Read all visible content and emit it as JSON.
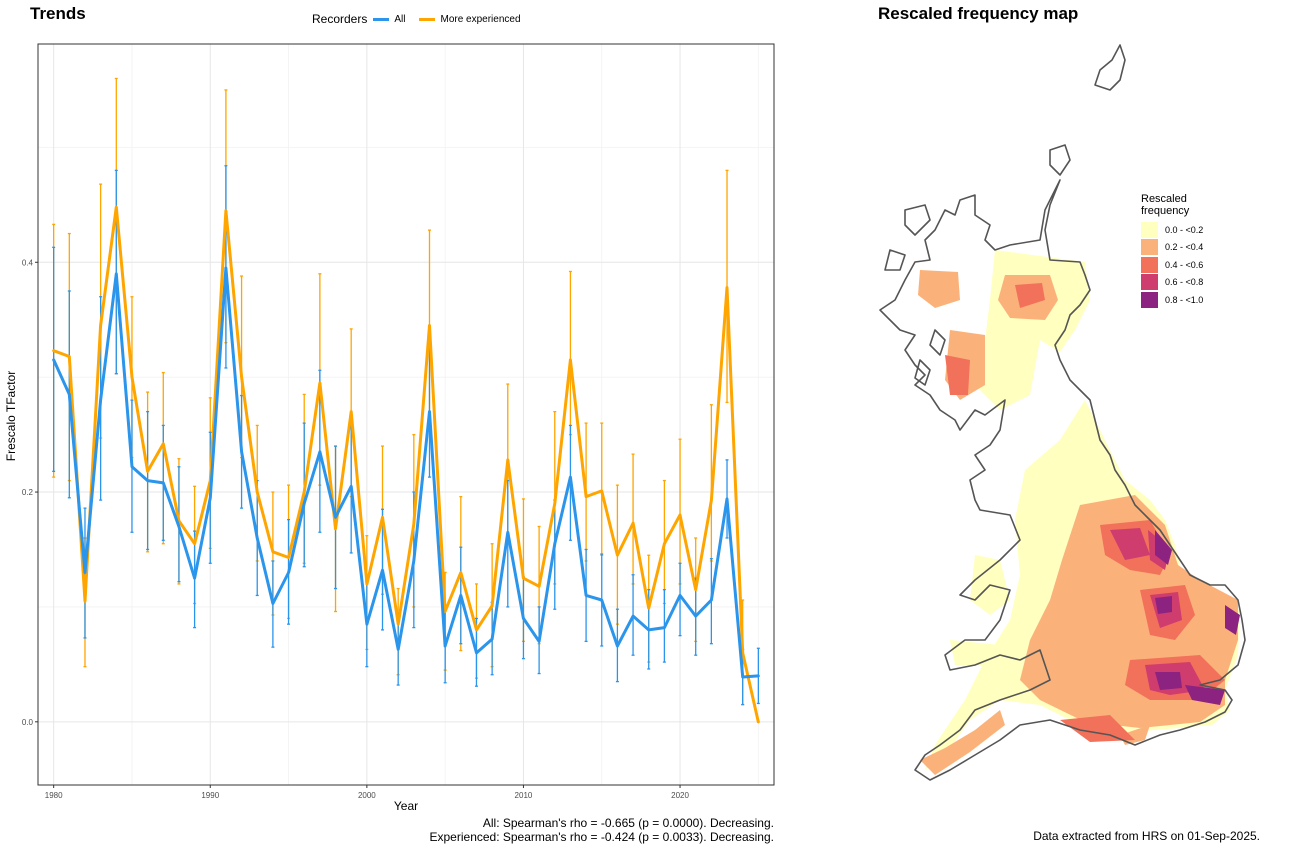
{
  "trends_title": "Trends",
  "map_title": "Rescaled frequency map",
  "legend": {
    "title": "Recorders",
    "items": [
      {
        "label": "All",
        "color": "#2B95EC"
      },
      {
        "label": "More experienced",
        "color": "#FFA500"
      }
    ]
  },
  "stats": {
    "all": "All: Spearman's rho = -0.665 (p = 0.0000). Decreasing.",
    "experienced": "Experienced: Spearman's rho = -0.424 (p = 0.0033). Decreasing."
  },
  "source_note": "Data extracted from HRS on 01-Sep-2025.",
  "map_legend": {
    "title_line1": "Rescaled",
    "title_line2": "frequency",
    "items": [
      {
        "label": "0.0 - <0.2",
        "color": "#FFFFC0"
      },
      {
        "label": "0.2 - <0.4",
        "color": "#FBB27A"
      },
      {
        "label": "0.4 - <0.6",
        "color": "#F2715A"
      },
      {
        "label": "0.6 - <0.8",
        "color": "#CF3C6E"
      },
      {
        "label": "0.8 - <1.0",
        "color": "#8C2380"
      }
    ]
  },
  "chart_data": {
    "type": "line",
    "xlabel": "Year",
    "ylabel": "Frescalo TFactor",
    "xlim": [
      1979,
      2026
    ],
    "ylim": [
      -0.055,
      0.59
    ],
    "x_ticks": [
      1980,
      1990,
      2000,
      2010,
      2020
    ],
    "y_ticks": [
      0.0,
      0.2,
      0.4
    ],
    "y_tick_labels": [
      "0.0",
      "0.2",
      "0.4"
    ],
    "grid": true,
    "x": [
      1980,
      1981,
      1982,
      1983,
      1984,
      1985,
      1986,
      1987,
      1988,
      1989,
      1990,
      1991,
      1992,
      1993,
      1994,
      1995,
      1996,
      1997,
      1998,
      1999,
      2000,
      2001,
      2002,
      2003,
      2004,
      2005,
      2006,
      2007,
      2008,
      2009,
      2010,
      2011,
      2012,
      2013,
      2014,
      2015,
      2016,
      2017,
      2018,
      2019,
      2020,
      2021,
      2022,
      2023,
      2024,
      2025
    ],
    "series": [
      {
        "name": "All",
        "color": "#2B95EC",
        "values": [
          0.315,
          0.285,
          0.13,
          0.28,
          0.39,
          0.222,
          0.21,
          0.208,
          0.17,
          0.125,
          0.195,
          0.395,
          0.235,
          0.16,
          0.103,
          0.13,
          0.19,
          0.235,
          0.178,
          0.205,
          0.085,
          0.132,
          0.063,
          0.14,
          0.27,
          0.066,
          0.11,
          0.06,
          0.072,
          0.165,
          0.09,
          0.07,
          0.155,
          0.213,
          0.11,
          0.106,
          0.066,
          0.092,
          0.08,
          0.082,
          0.11,
          0.092,
          0.106,
          0.194,
          0.039,
          0.04
        ],
        "lower": [
          0.218,
          0.195,
          0.073,
          0.193,
          0.303,
          0.165,
          0.15,
          0.158,
          0.122,
          0.082,
          0.138,
          0.308,
          0.186,
          0.11,
          0.065,
          0.085,
          0.135,
          0.165,
          0.116,
          0.147,
          0.048,
          0.08,
          0.032,
          0.082,
          0.213,
          0.034,
          0.068,
          0.031,
          0.041,
          0.1,
          0.055,
          0.042,
          0.098,
          0.158,
          0.07,
          0.066,
          0.035,
          0.058,
          0.046,
          0.052,
          0.075,
          0.058,
          0.068,
          0.16,
          0.015,
          0.016
        ],
        "upper": [
          0.413,
          0.375,
          0.186,
          0.37,
          0.48,
          0.28,
          0.27,
          0.258,
          0.222,
          0.166,
          0.252,
          0.484,
          0.284,
          0.21,
          0.14,
          0.176,
          0.26,
          0.306,
          0.24,
          0.264,
          0.122,
          0.185,
          0.094,
          0.2,
          0.335,
          0.1,
          0.152,
          0.09,
          0.104,
          0.21,
          0.126,
          0.1,
          0.193,
          0.258,
          0.15,
          0.146,
          0.098,
          0.128,
          0.115,
          0.115,
          0.138,
          0.125,
          0.142,
          0.228,
          0.063,
          0.064
        ]
      },
      {
        "name": "More experienced",
        "color": "#FFA500",
        "values": [
          0.323,
          0.318,
          0.105,
          0.345,
          0.448,
          0.3,
          0.218,
          0.242,
          0.175,
          0.155,
          0.21,
          0.445,
          0.3,
          0.2,
          0.148,
          0.143,
          0.2,
          0.295,
          0.168,
          0.27,
          0.12,
          0.178,
          0.085,
          0.172,
          0.345,
          0.096,
          0.13,
          0.08,
          0.101,
          0.228,
          0.125,
          0.118,
          0.19,
          0.315,
          0.196,
          0.201,
          0.145,
          0.173,
          0.099,
          0.155,
          0.18,
          0.115,
          0.193,
          0.378,
          0.06,
          0.0
        ],
        "lower": [
          0.213,
          0.21,
          0.048,
          0.247,
          0.303,
          0.23,
          0.148,
          0.155,
          0.12,
          0.103,
          0.151,
          0.33,
          0.23,
          0.14,
          0.093,
          0.09,
          0.138,
          0.206,
          0.096,
          0.196,
          0.063,
          0.111,
          0.041,
          0.1,
          0.253,
          0.045,
          0.062,
          0.038,
          0.048,
          0.16,
          0.07,
          0.068,
          0.12,
          0.25,
          0.14,
          0.145,
          0.085,
          0.12,
          0.052,
          0.103,
          0.12,
          0.07,
          0.14,
          0.278,
          0.015,
          0.0
        ],
        "upper": [
          0.433,
          0.425,
          0.16,
          0.468,
          0.56,
          0.37,
          0.287,
          0.304,
          0.229,
          0.205,
          0.282,
          0.55,
          0.388,
          0.258,
          0.2,
          0.206,
          0.285,
          0.39,
          0.24,
          0.342,
          0.162,
          0.24,
          0.116,
          0.25,
          0.428,
          0.13,
          0.196,
          0.12,
          0.155,
          0.294,
          0.194,
          0.17,
          0.27,
          0.392,
          0.26,
          0.26,
          0.206,
          0.233,
          0.145,
          0.21,
          0.246,
          0.16,
          0.276,
          0.48,
          0.106,
          0.0
        ]
      }
    ]
  }
}
